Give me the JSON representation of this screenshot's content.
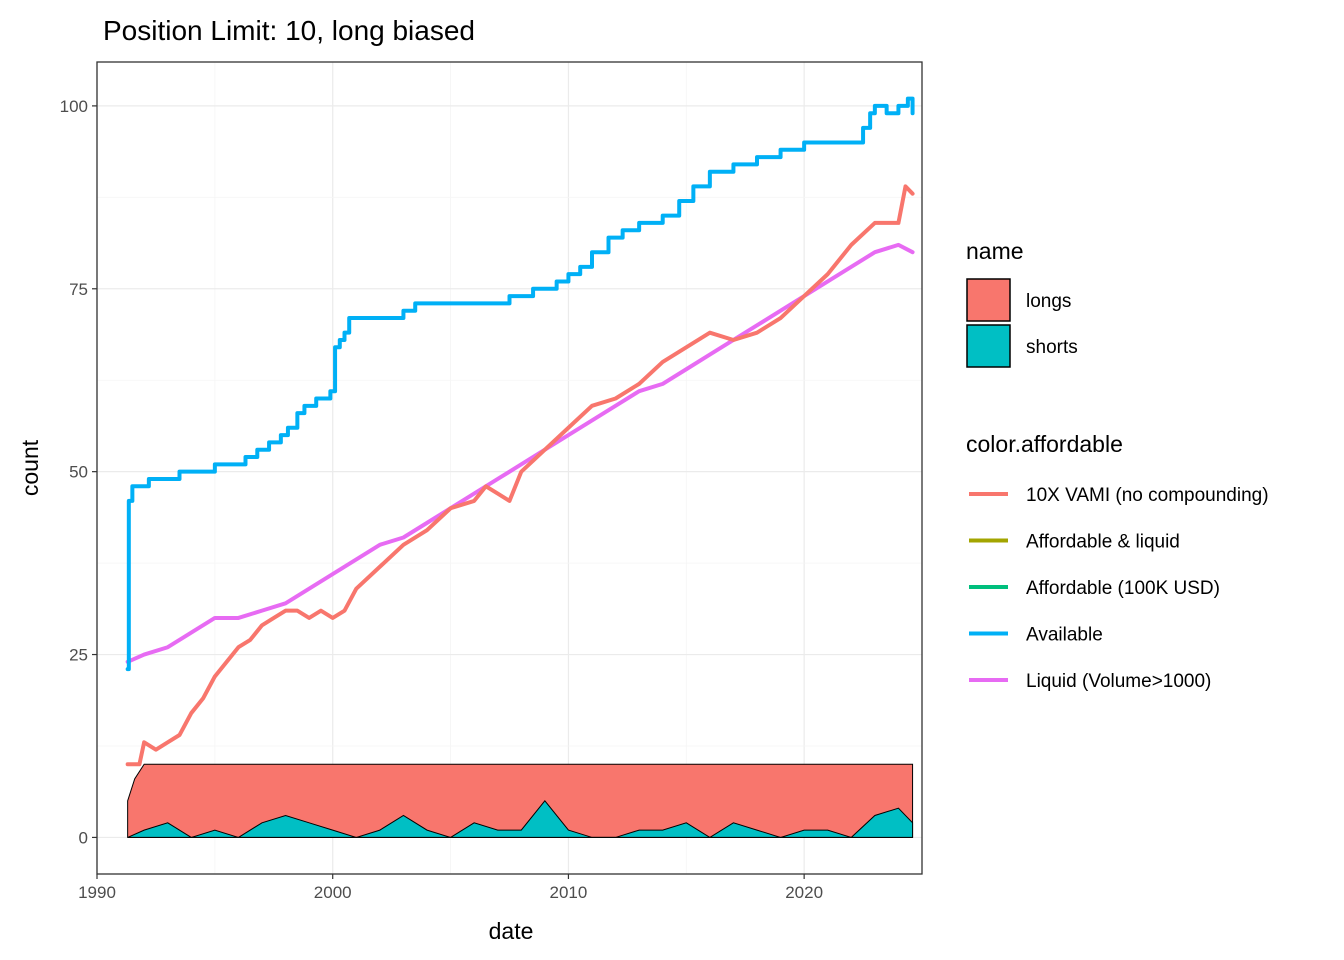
{
  "chart_data": {
    "type": "area",
    "title": "Position Limit: 10, long biased",
    "xlabel": "date",
    "ylabel": "count",
    "xlim": [
      1990,
      2025
    ],
    "ylim": [
      -5,
      106
    ],
    "x_ticks": [
      1990,
      2000,
      2010,
      2020
    ],
    "y_ticks": [
      0,
      25,
      50,
      75,
      100
    ],
    "x_tick_labels": [
      "1990",
      "2000",
      "2010",
      "2020"
    ],
    "y_tick_labels": [
      "0",
      "25",
      "50",
      "75",
      "100"
    ],
    "grid": true,
    "legend_position": "right",
    "area_legend": {
      "title": "name",
      "items": [
        {
          "name": "longs",
          "color": "#F8766D"
        },
        {
          "name": "shorts",
          "color": "#00BFC4"
        }
      ]
    },
    "line_legend": {
      "title": "color.affordable",
      "items": [
        {
          "name": "10X VAMI (no compounding)",
          "color": "#F8766D"
        },
        {
          "name": "Affordable & liquid",
          "color": "#A3A500"
        },
        {
          "name": "Affordable (100K USD)",
          "color": "#00BF7D"
        },
        {
          "name": "Available",
          "color": "#00B0F6"
        },
        {
          "name": "Liquid (Volume>1000)",
          "color": "#E76BF3"
        }
      ]
    },
    "series": [
      {
        "name": "Available",
        "kind": "step",
        "color": "#00B0F6",
        "x": [
          1991.3,
          1991.35,
          1991.5,
          1992.2,
          1993.5,
          1995.0,
          1996.3,
          1996.8,
          1997.3,
          1997.8,
          1998.1,
          1998.5,
          1998.8,
          1999.3,
          1999.9,
          2000.1,
          2000.3,
          2000.5,
          2000.7,
          2001.2,
          2002.5,
          2003.0,
          2003.5,
          2005.0,
          2006.5,
          2007.5,
          2008.5,
          2009.5,
          2010.0,
          2010.5,
          2011.0,
          2011.7,
          2012.3,
          2013.0,
          2014.0,
          2014.7,
          2015.3,
          2016.0,
          2017.0,
          2018.0,
          2019.0,
          2020.0,
          2021.0,
          2022.0,
          2022.5,
          2022.8,
          2023.0,
          2023.5,
          2024.0,
          2024.4,
          2024.6
        ],
        "y": [
          23,
          46,
          48,
          49,
          50,
          51,
          52,
          53,
          54,
          55,
          56,
          58,
          59,
          60,
          61,
          67,
          68,
          69,
          71,
          71,
          71,
          72,
          73,
          73,
          73,
          74,
          75,
          76,
          77,
          78,
          80,
          82,
          83,
          84,
          85,
          87,
          89,
          91,
          92,
          93,
          94,
          95,
          95,
          95,
          97,
          99,
          100,
          99,
          100,
          101,
          99
        ]
      },
      {
        "name": "Liquid (Volume>1000)",
        "kind": "line",
        "color": "#E76BF3",
        "x": [
          1991.3,
          1992.0,
          1993.0,
          1994.0,
          1995.0,
          1996.0,
          1997.0,
          1998.0,
          1999.0,
          2000.0,
          2001.0,
          2002.0,
          2003.0,
          2004.0,
          2005.0,
          2006.0,
          2007.0,
          2008.0,
          2009.0,
          2010.0,
          2011.0,
          2012.0,
          2013.0,
          2014.0,
          2015.0,
          2016.0,
          2017.0,
          2018.0,
          2019.0,
          2020.0,
          2021.0,
          2022.0,
          2023.0,
          2024.0,
          2024.6
        ],
        "y": [
          24,
          25,
          26,
          28,
          30,
          30,
          31,
          32,
          34,
          36,
          38,
          40,
          41,
          43,
          45,
          47,
          49,
          51,
          53,
          55,
          57,
          59,
          61,
          62,
          64,
          66,
          68,
          70,
          72,
          74,
          76,
          78,
          80,
          81,
          80
        ]
      },
      {
        "name": "10X VAMI (no compounding)",
        "kind": "line",
        "color": "#F8766D",
        "x": [
          1991.3,
          1991.8,
          1992.0,
          1992.5,
          1993.0,
          1993.5,
          1994.0,
          1994.5,
          1995.0,
          1995.5,
          1996.0,
          1996.5,
          1997.0,
          1997.5,
          1998.0,
          1998.5,
          1999.0,
          1999.5,
          2000.0,
          2000.5,
          2001.0,
          2002.0,
          2003.0,
          2004.0,
          2005.0,
          2006.0,
          2006.5,
          2007.0,
          2007.5,
          2008.0,
          2009.0,
          2010.0,
          2011.0,
          2012.0,
          2013.0,
          2014.0,
          2015.0,
          2016.0,
          2017.0,
          2018.0,
          2019.0,
          2020.0,
          2021.0,
          2022.0,
          2023.0,
          2024.0,
          2024.3,
          2024.6
        ],
        "y": [
          10,
          10,
          13,
          12,
          13,
          14,
          17,
          19,
          22,
          24,
          26,
          27,
          29,
          30,
          31,
          31,
          30,
          31,
          30,
          31,
          34,
          37,
          40,
          42,
          45,
          46,
          48,
          47,
          46,
          50,
          53,
          56,
          59,
          60,
          62,
          65,
          67,
          69,
          68,
          69,
          71,
          74,
          77,
          81,
          84,
          84,
          89,
          88
        ]
      },
      {
        "name": "longs",
        "kind": "area",
        "color": "#F8766D",
        "x": [
          1991.3,
          1991.6,
          1992.0,
          1993.0,
          1994.0,
          1995.0,
          1996.0,
          1997.0,
          1998.0,
          1999.0,
          2000.0,
          2001.0,
          2002.0,
          2003.0,
          2004.0,
          2005.0,
          2006.0,
          2007.0,
          2008.0,
          2009.0,
          2010.0,
          2011.0,
          2012.0,
          2013.0,
          2014.0,
          2015.0,
          2016.0,
          2017.0,
          2018.0,
          2019.0,
          2020.0,
          2021.0,
          2022.0,
          2023.0,
          2024.0,
          2024.6
        ],
        "y": [
          5,
          8,
          10,
          10,
          10,
          10,
          10,
          10,
          10,
          10,
          10,
          10,
          10,
          10,
          10,
          10,
          10,
          10,
          10,
          10,
          10,
          10,
          10,
          10,
          10,
          10,
          10,
          10,
          10,
          10,
          10,
          10,
          10,
          10,
          10,
          10
        ]
      },
      {
        "name": "shorts",
        "kind": "area",
        "color": "#00BFC4",
        "x": [
          1991.3,
          1992.0,
          1993.0,
          1994.0,
          1995.0,
          1996.0,
          1997.0,
          1998.0,
          1999.0,
          2000.0,
          2001.0,
          2002.0,
          2003.0,
          2004.0,
          2005.0,
          2006.0,
          2007.0,
          2008.0,
          2009.0,
          2010.0,
          2011.0,
          2012.0,
          2013.0,
          2014.0,
          2015.0,
          2016.0,
          2017.0,
          2018.0,
          2019.0,
          2020.0,
          2021.0,
          2022.0,
          2023.0,
          2024.0,
          2024.6
        ],
        "y": [
          0,
          1,
          2,
          0,
          1,
          0,
          2,
          3,
          2,
          1,
          0,
          1,
          3,
          1,
          0,
          2,
          1,
          1,
          5,
          1,
          0,
          0,
          1,
          1,
          2,
          0,
          2,
          1,
          0,
          1,
          1,
          0,
          3,
          4,
          2
        ]
      }
    ]
  }
}
